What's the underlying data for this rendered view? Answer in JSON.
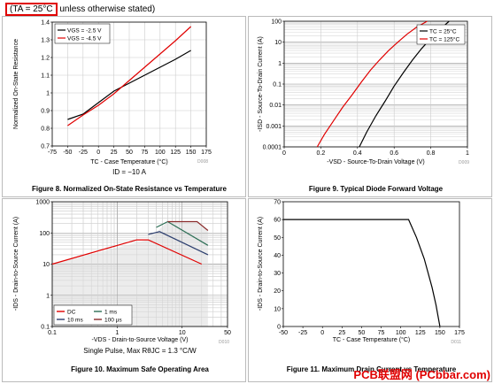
{
  "header": {
    "condition": "(TA = 25°C",
    "rest": "unless otherwise stated)"
  },
  "watermark": "PCB联盟网 (PCbbar.com)",
  "chart_data": [
    {
      "id": "fig8",
      "type": "line",
      "caption": "Figure 8. Normalized On-State Resistance vs Temperature",
      "note": "ID = −10 A",
      "code": "D008",
      "xlabel": "TC - Case Temperature (°C)",
      "ylabel": "Normalized On-State Resistance",
      "xlim": [
        -75,
        175
      ],
      "ylim": [
        0.7,
        1.4
      ],
      "xticks": [
        -75,
        -50,
        -25,
        0,
        25,
        50,
        75,
        100,
        125,
        150,
        175
      ],
      "yticks": [
        0.7,
        0.8,
        0.9,
        1.0,
        1.1,
        1.2,
        1.3,
        1.4
      ],
      "grid": true,
      "legend_position": "top-left",
      "series": [
        {
          "name": "VGS = -2.5 V",
          "color": "#000000",
          "x": [
            -50,
            -25,
            0,
            25,
            50,
            75,
            100,
            125,
            150
          ],
          "y": [
            0.85,
            0.88,
            0.945,
            1.01,
            1.055,
            1.1,
            1.145,
            1.19,
            1.24
          ]
        },
        {
          "name": "VGS = -4.5 V",
          "color": "#e00000",
          "x": [
            -50,
            -25,
            0,
            25,
            50,
            75,
            100,
            125,
            150
          ],
          "y": [
            0.815,
            0.875,
            0.93,
            0.995,
            1.07,
            1.145,
            1.22,
            1.295,
            1.375
          ]
        }
      ]
    },
    {
      "id": "fig9",
      "type": "line",
      "caption": "Figure 9. Typical Diode Forward Voltage",
      "code": "D009",
      "xlabel": "-VSD - Source-To-Drain Voltage (V)",
      "ylabel": "-ISD - Source-To-Drain Current (A)",
      "xlim": [
        0,
        1
      ],
      "ylim": [
        0.0001,
        100
      ],
      "yscale": "log",
      "xticks": [
        0,
        0.2,
        0.4,
        0.6,
        0.8,
        1
      ],
      "yticks": [
        0.0001,
        0.001,
        0.01,
        0.1,
        1,
        10,
        100
      ],
      "ytick_labels": [
        "0.0001",
        "0.001",
        "0.01",
        "0.1",
        "1",
        "10",
        "100"
      ],
      "grid": true,
      "legend_position": "top-right",
      "series": [
        {
          "name": "TC = 25°C",
          "color": "#000000",
          "x": [
            0.41,
            0.45,
            0.5,
            0.55,
            0.6,
            0.65,
            0.7,
            0.75,
            0.8,
            0.85,
            0.9
          ],
          "y": [
            0.0001,
            0.0005,
            0.003,
            0.015,
            0.08,
            0.35,
            1.4,
            5,
            15,
            40,
            100
          ]
        },
        {
          "name": "TC = 125°C",
          "color": "#e00000",
          "x": [
            0.18,
            0.22,
            0.27,
            0.32,
            0.37,
            0.42,
            0.47,
            0.52,
            0.57,
            0.62,
            0.67,
            0.72,
            0.78
          ],
          "y": [
            0.0001,
            0.0004,
            0.0018,
            0.008,
            0.03,
            0.12,
            0.45,
            1.4,
            4,
            10,
            24,
            50,
            100
          ]
        }
      ]
    },
    {
      "id": "fig10",
      "type": "line",
      "caption": "Figure 10. Maximum Safe Operating Area",
      "note": "Single Pulse, Max RθJC = 1.3 °C/W",
      "code": "D010",
      "xlabel": "-VDS - Drain-to-Source Voltage (V)",
      "ylabel": "-IDS - Drain-to-Source Current (A)",
      "xlim": [
        0.1,
        50
      ],
      "ylim": [
        0.1,
        1000
      ],
      "xscale": "log",
      "yscale": "log",
      "xticks": [
        0.1,
        1,
        10,
        50
      ],
      "yticks": [
        0.1,
        1,
        10,
        100,
        1000
      ],
      "grid": true,
      "legend_position": "bottom-left",
      "series": [
        {
          "name": "DC",
          "color": "#e00000",
          "x": [
            0.1,
            2,
            3,
            20
          ],
          "y": [
            10,
            60,
            60,
            10
          ]
        },
        {
          "name": "10 ms",
          "color": "#2c3e6e",
          "x": [
            3,
            4.5,
            25
          ],
          "y": [
            90,
            110,
            20
          ]
        },
        {
          "name": "1 ms",
          "color": "#2e6f56",
          "x": [
            4,
            6,
            25
          ],
          "y": [
            150,
            230,
            40
          ]
        },
        {
          "name": "100 µs",
          "color": "#8a2b2b",
          "x": [
            6,
            17,
            25
          ],
          "y": [
            230,
            230,
            120
          ]
        }
      ]
    },
    {
      "id": "fig11",
      "type": "line",
      "caption": "Figure 11. Maximum Drain Current vs Temperature",
      "code": "D011",
      "xlabel": "TC - Case Temperature (°C)",
      "ylabel": "-IDS - Drain-to-Source Current (A)",
      "xlim": [
        -50,
        175
      ],
      "ylim": [
        0,
        70
      ],
      "xticks": [
        -50,
        -25,
        0,
        25,
        50,
        75,
        100,
        125,
        150,
        175
      ],
      "yticks": [
        0,
        10,
        20,
        30,
        40,
        50,
        60,
        70
      ],
      "grid": false,
      "series": [
        {
          "name": "",
          "color": "#000000",
          "x": [
            -50,
            110,
            120,
            130,
            140,
            145,
            150
          ],
          "y": [
            60,
            60,
            50,
            38,
            22,
            12,
            0
          ]
        }
      ]
    }
  ]
}
